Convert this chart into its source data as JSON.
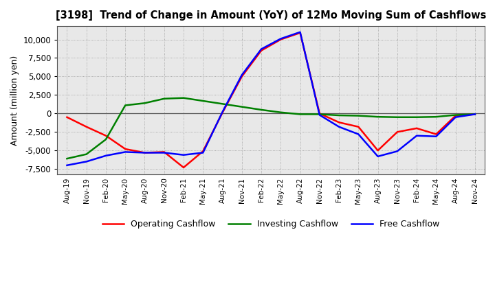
{
  "title": "[3198]  Trend of Change in Amount (YoY) of 12Mo Moving Sum of Cashflows",
  "ylabel": "Amount (million yen)",
  "x_labels": [
    "Aug-19",
    "Nov-19",
    "Feb-20",
    "May-20",
    "Aug-20",
    "Nov-20",
    "Feb-21",
    "May-21",
    "Aug-21",
    "Nov-21",
    "Feb-22",
    "May-22",
    "Aug-22",
    "Nov-22",
    "Feb-23",
    "May-23",
    "Aug-23",
    "Nov-23",
    "Feb-24",
    "May-24",
    "Aug-24",
    "Nov-24"
  ],
  "operating": [
    -500,
    -1800,
    -3000,
    -4800,
    -5300,
    -5200,
    -7300,
    -5100,
    100,
    5000,
    8500,
    10000,
    10900,
    0,
    -1200,
    -1800,
    -5000,
    -2500,
    -2000,
    -2800,
    -300,
    -100
  ],
  "investing": [
    -6100,
    -5500,
    -3500,
    1100,
    1400,
    2000,
    2100,
    1700,
    1300,
    900,
    500,
    150,
    -100,
    -100,
    -250,
    -300,
    -450,
    -500,
    -500,
    -450,
    -200,
    -100
  ],
  "free": [
    -7000,
    -6500,
    -5700,
    -5200,
    -5300,
    -5300,
    -5600,
    -5300,
    200,
    5200,
    8700,
    10100,
    11000,
    -200,
    -1800,
    -2800,
    -5800,
    -5100,
    -3000,
    -3100,
    -500,
    -100
  ],
  "ylim": [
    -8200,
    11800
  ],
  "yticks": [
    -7500,
    -5000,
    -2500,
    0,
    2500,
    5000,
    7500,
    10000
  ],
  "colors": {
    "operating": "#ff0000",
    "investing": "#008000",
    "free": "#0000ff"
  },
  "legend": [
    "Operating Cashflow",
    "Investing Cashflow",
    "Free Cashflow"
  ],
  "plot_bg": "#e8e8e8",
  "fig_bg": "#ffffff",
  "grid_color": "#999999"
}
